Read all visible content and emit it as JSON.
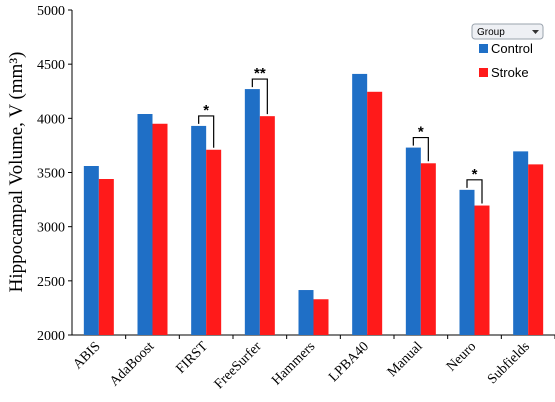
{
  "chart_data": {
    "type": "bar",
    "ylabel": "Hippocampal Volume, V (mm³)",
    "ylim": [
      2000,
      5000
    ],
    "yticks": [
      2000,
      2500,
      3000,
      3500,
      4000,
      4500,
      5000
    ],
    "categories": [
      "ABIS",
      "AdaBoost",
      "FIRST",
      "FreeSurfer",
      "Hammers",
      "LPBA40",
      "Manual",
      "Neuro",
      "Subfields"
    ],
    "series": [
      {
        "name": "Control",
        "color": "#1f6fc6",
        "values": [
          3560,
          4040,
          3930,
          4270,
          2415,
          4410,
          3730,
          3340,
          3695
        ]
      },
      {
        "name": "Stroke",
        "color": "#ff1a1a",
        "values": [
          3440,
          3950,
          3710,
          4020,
          2330,
          4245,
          3585,
          3195,
          3575
        ]
      }
    ],
    "significance": [
      {
        "category": "FIRST",
        "label": "*"
      },
      {
        "category": "FreeSurfer",
        "label": "**"
      },
      {
        "category": "Manual",
        "label": "*"
      },
      {
        "category": "Neuro",
        "label": "*"
      }
    ],
    "legend": {
      "title": "Group",
      "placement": "top-right"
    },
    "grid": false
  }
}
